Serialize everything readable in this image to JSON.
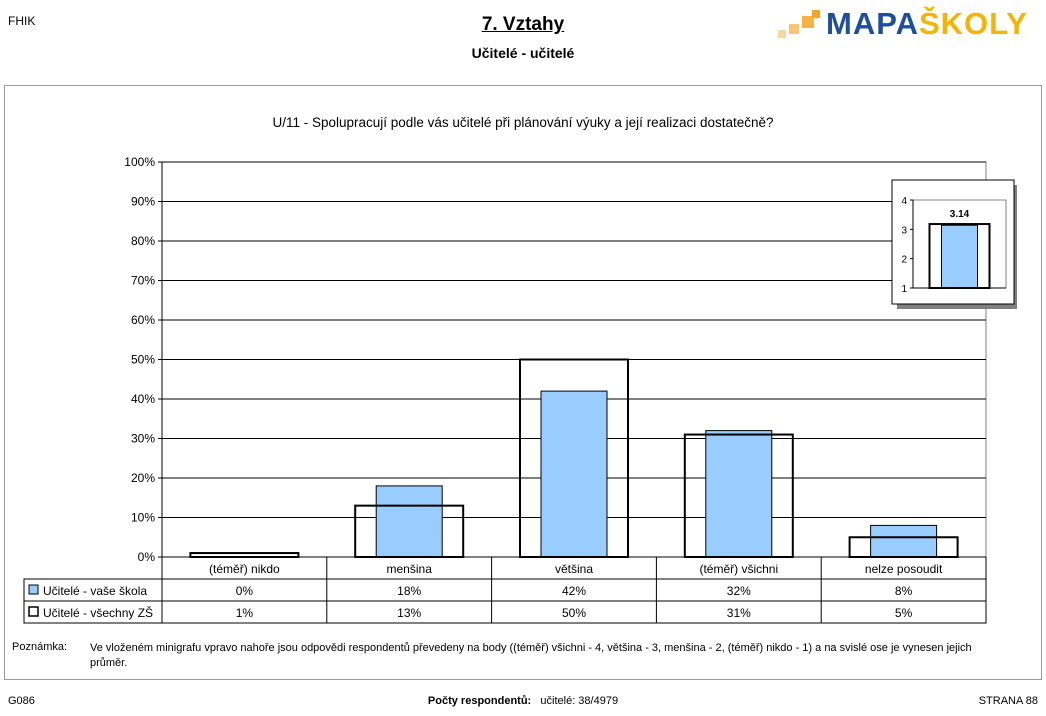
{
  "header": {
    "corner_left": "FHIK",
    "title": "7. Vztahy",
    "subtitle": "Učitelé - učitelé",
    "logo_main": "MAPA",
    "logo_accent": "ŠKOLY"
  },
  "chart_data": {
    "type": "bar",
    "title": "U/11 - Spolupracují podle vás učitelé při plánování výuky a její realizaci dostatečně?",
    "categories": [
      "(téměř) nikdo",
      "menšina",
      "většina",
      "(téměř) všichni",
      "nelze posoudit"
    ],
    "series": [
      {
        "name": "Učitelé - vaše škola",
        "values": [
          0,
          18,
          42,
          32,
          8
        ],
        "labels": [
          "0%",
          "18%",
          "42%",
          "32%",
          "8%"
        ],
        "color": "#99ccff"
      },
      {
        "name": "Učitelé - všechny ZŠ",
        "values": [
          1,
          13,
          50,
          31,
          5
        ],
        "labels": [
          "1%",
          "13%",
          "50%",
          "31%",
          "5%"
        ],
        "color": "#ffffff"
      }
    ],
    "ylim": [
      0,
      100
    ],
    "yticks": [
      "0%",
      "10%",
      "20%",
      "30%",
      "40%",
      "50%",
      "60%",
      "70%",
      "80%",
      "90%",
      "100%"
    ],
    "grid": true,
    "minigraph": {
      "type": "bar",
      "ylim": [
        1,
        4
      ],
      "yticks": [
        "1",
        "2",
        "3",
        "4"
      ],
      "school_value": 3.14,
      "school_label": "3.14",
      "all_value": 3.18
    }
  },
  "note": {
    "label": "Poznámka:",
    "text": "Ve vloženém minigrafu vpravo nahoře jsou odpovědi respondentů převedeny na body ((téměř) všichni - 4, většina - 3, menšina - 2, (téměř) nikdo - 1) a na svislé ose je vynesen jejich průměr."
  },
  "footer": {
    "left": "G086",
    "center_label": "Počty respondentů:",
    "center_value": "učitelé: 38/4979",
    "right": "STRANA 88"
  }
}
